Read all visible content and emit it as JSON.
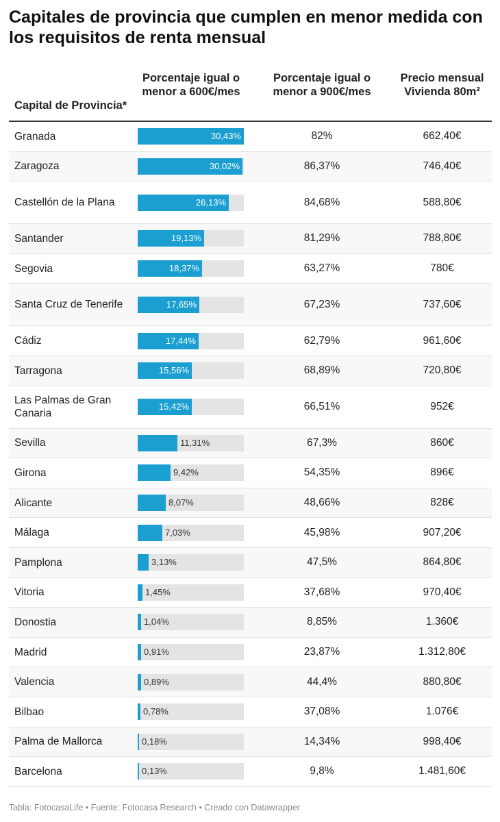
{
  "title": "Capitales de provincia que cumplen en menor medida con los requisitos de renta mensual",
  "columns": {
    "c1": "Capital de Provincia*",
    "c2": "Porcentaje igual o menor a 600€/mes",
    "c3": "Porcentaje igual o menor a 900€/mes",
    "c4": "Precio mensual Vivienda 80m²"
  },
  "footer": "Tabla: FotocasaLife • Fuente: Fotocasa Research • Creado con Datawrapper",
  "colors": {
    "bar": "#1a9fd0",
    "track": "#e4e4e4",
    "alt_row": "#f8f8f8"
  },
  "chart_data": {
    "type": "table",
    "bar_max": 30.43,
    "rows": [
      {
        "name": "Granada",
        "p600": 30.43,
        "p600_label": "30,43%",
        "p900": "82%",
        "price": "662,40€"
      },
      {
        "name": "Zaragoza",
        "p600": 30.02,
        "p600_label": "30,02%",
        "p900": "86,37%",
        "price": "746,40€"
      },
      {
        "name": "Castellón de la Plana",
        "p600": 26.13,
        "p600_label": "26,13%",
        "p900": "84,68%",
        "price": "588,80€"
      },
      {
        "name": "Santander",
        "p600": 19.13,
        "p600_label": "19,13%",
        "p900": "81,29%",
        "price": "788,80€"
      },
      {
        "name": "Segovia",
        "p600": 18.37,
        "p600_label": "18,37%",
        "p900": "63,27%",
        "price": "780€"
      },
      {
        "name": "Santa Cruz de Tenerife",
        "p600": 17.65,
        "p600_label": "17,65%",
        "p900": "67,23%",
        "price": "737,60€"
      },
      {
        "name": "Cádiz",
        "p600": 17.44,
        "p600_label": "17,44%",
        "p900": "62,79%",
        "price": "961,60€"
      },
      {
        "name": "Tarragona",
        "p600": 15.56,
        "p600_label": "15,56%",
        "p900": "68,89%",
        "price": "720,80€"
      },
      {
        "name": "Las Palmas de Gran Canaria",
        "p600": 15.42,
        "p600_label": "15,42%",
        "p900": "66,51%",
        "price": "952€"
      },
      {
        "name": "Sevilla",
        "p600": 11.31,
        "p600_label": "11,31%",
        "p900": "67,3%",
        "price": "860€"
      },
      {
        "name": "Girona",
        "p600": 9.42,
        "p600_label": "9,42%",
        "p900": "54,35%",
        "price": "896€"
      },
      {
        "name": "Alicante",
        "p600": 8.07,
        "p600_label": "8,07%",
        "p900": "48,66%",
        "price": "828€"
      },
      {
        "name": "Málaga",
        "p600": 7.03,
        "p600_label": "7,03%",
        "p900": "45,98%",
        "price": "907,20€"
      },
      {
        "name": "Pamplona",
        "p600": 3.13,
        "p600_label": "3,13%",
        "p900": "47,5%",
        "price": "864,80€"
      },
      {
        "name": "Vitoria",
        "p600": 1.45,
        "p600_label": "1,45%",
        "p900": "37,68%",
        "price": "970,40€"
      },
      {
        "name": "Donostia",
        "p600": 1.04,
        "p600_label": "1,04%",
        "p900": "8,85%",
        "price": "1.360€"
      },
      {
        "name": "Madrid",
        "p600": 0.91,
        "p600_label": "0,91%",
        "p900": "23,87%",
        "price": "1.312,80€"
      },
      {
        "name": "Valencia",
        "p600": 0.89,
        "p600_label": "0,89%",
        "p900": "44,4%",
        "price": "880,80€"
      },
      {
        "name": "Bilbao",
        "p600": 0.78,
        "p600_label": "0,78%",
        "p900": "37,08%",
        "price": "1.076€"
      },
      {
        "name": "Palma de Mallorca",
        "p600": 0.18,
        "p600_label": "0,18%",
        "p900": "14,34%",
        "price": "998,40€"
      },
      {
        "name": "Barcelona",
        "p600": 0.13,
        "p600_label": "0,13%",
        "p900": "9,8%",
        "price": "1.481,60€"
      }
    ]
  }
}
